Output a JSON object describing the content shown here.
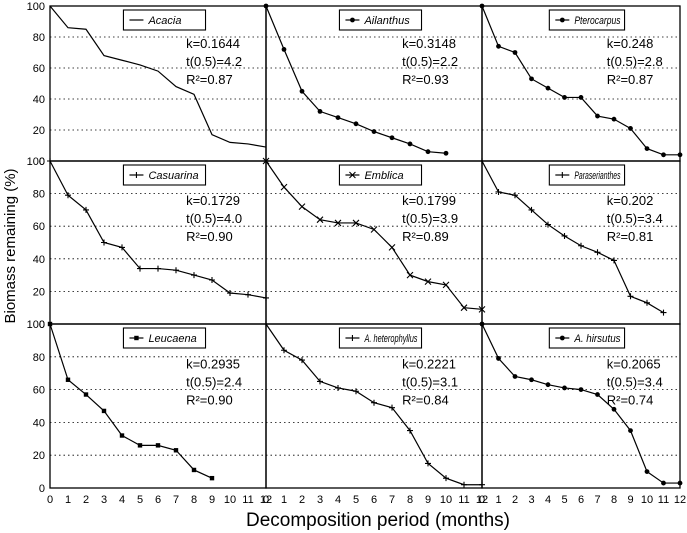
{
  "figure": {
    "xlabel": "Decomposition period (months)",
    "ylabel": "Biomass remaining (%)",
    "x_ticks": [
      0,
      1,
      2,
      3,
      4,
      5,
      6,
      7,
      8,
      9,
      10,
      11,
      12
    ],
    "y_ticks": [
      0,
      20,
      40,
      60,
      80,
      100
    ],
    "stat_labels": {
      "k": "k=",
      "t": "t(0.5)=",
      "r": "R²="
    }
  },
  "chart_data": [
    {
      "type": "line",
      "xlim": [
        0,
        12
      ],
      "ylim": [
        0,
        100
      ],
      "grid": "horizontal-dotted",
      "legend": "top-right",
      "series": [
        {
          "name": "Acacia",
          "marker": "none",
          "x": [
            0,
            1,
            2,
            3,
            4,
            5,
            6,
            7,
            8,
            9,
            10,
            11,
            12
          ],
          "y": [
            100,
            86,
            85,
            68,
            65,
            62,
            58,
            48,
            43,
            17,
            12,
            11,
            9
          ]
        }
      ],
      "k": "0.1644",
      "t_half": "4.2",
      "r2": "0.87"
    },
    {
      "type": "line",
      "xlim": [
        0,
        12
      ],
      "ylim": [
        0,
        100
      ],
      "grid": "horizontal-dotted",
      "legend": "top-right",
      "series": [
        {
          "name": "Ailanthus",
          "marker": "dot",
          "x": [
            0,
            1,
            2,
            3,
            4,
            5,
            6,
            7,
            8,
            9,
            10
          ],
          "y": [
            100,
            72,
            45,
            32,
            28,
            24,
            19,
            15,
            11,
            6,
            5
          ]
        }
      ],
      "k": "0.3148",
      "t_half": "2.2",
      "r2": "0.93"
    },
    {
      "type": "line",
      "xlim": [
        0,
        12
      ],
      "ylim": [
        0,
        100
      ],
      "grid": "horizontal-dotted",
      "legend": "top-right",
      "series": [
        {
          "name": "Pterocarpus",
          "marker": "dot",
          "x": [
            0,
            1,
            2,
            3,
            4,
            5,
            6,
            7,
            8,
            9,
            10,
            11,
            12
          ],
          "y": [
            100,
            74,
            70,
            53,
            47,
            41,
            41,
            29,
            27,
            21,
            8,
            4,
            4
          ]
        }
      ],
      "k": "0.248",
      "t_half": "2.8",
      "r2": "0.87"
    },
    {
      "type": "line",
      "xlim": [
        0,
        12
      ],
      "ylim": [
        0,
        100
      ],
      "grid": "horizontal-dotted",
      "legend": "top-right",
      "series": [
        {
          "name": "Casuarina",
          "marker": "plus",
          "x": [
            0,
            1,
            2,
            3,
            4,
            5,
            6,
            7,
            8,
            9,
            10,
            11,
            12
          ],
          "y": [
            100,
            79,
            70,
            50,
            47,
            34,
            34,
            33,
            30,
            27,
            19,
            18,
            16
          ]
        }
      ],
      "k": "0.1729",
      "t_half": "4.0",
      "r2": "0.90"
    },
    {
      "type": "line",
      "xlim": [
        0,
        12
      ],
      "ylim": [
        0,
        100
      ],
      "grid": "horizontal-dotted",
      "legend": "top-right",
      "series": [
        {
          "name": "Emblica",
          "marker": "cross",
          "x": [
            0,
            1,
            2,
            3,
            4,
            5,
            6,
            7,
            8,
            9,
            10,
            11,
            12
          ],
          "y": [
            100,
            84,
            72,
            64,
            62,
            62,
            58,
            47,
            30,
            26,
            24,
            10,
            9
          ]
        }
      ],
      "k": "0.1799",
      "t_half": "3.9",
      "r2": "0.89"
    },
    {
      "type": "line",
      "xlim": [
        0,
        12
      ],
      "ylim": [
        0,
        100
      ],
      "grid": "horizontal-dotted",
      "legend": "top-right",
      "series": [
        {
          "name": "Paraserianthes",
          "marker": "plus",
          "x": [
            0,
            1,
            2,
            3,
            4,
            5,
            6,
            7,
            8,
            9,
            10,
            11
          ],
          "y": [
            100,
            81,
            79,
            70,
            61,
            54,
            48,
            44,
            39,
            17,
            13,
            7
          ]
        }
      ],
      "k": "0.202",
      "t_half": "3.4",
      "r2": "0.81"
    },
    {
      "type": "line",
      "xlim": [
        0,
        12
      ],
      "ylim": [
        0,
        100
      ],
      "grid": "horizontal-dotted",
      "legend": "top-right",
      "series": [
        {
          "name": "Leucaena",
          "marker": "square",
          "x": [
            0,
            1,
            2,
            3,
            4,
            5,
            6,
            7,
            8,
            9
          ],
          "y": [
            100,
            66,
            57,
            47,
            32,
            26,
            26,
            23,
            11,
            6
          ]
        }
      ],
      "k": "0.2935",
      "t_half": "2.4",
      "r2": "0.90"
    },
    {
      "type": "line",
      "xlim": [
        0,
        12
      ],
      "ylim": [
        0,
        100
      ],
      "grid": "horizontal-dotted",
      "legend": "top-right",
      "series": [
        {
          "name": "A. heterophyllus",
          "marker": "plus",
          "x": [
            0,
            1,
            2,
            3,
            4,
            5,
            6,
            7,
            8,
            9,
            10,
            11,
            12
          ],
          "y": [
            100,
            84,
            78,
            65,
            61,
            59,
            52,
            49,
            35,
            15,
            6,
            2,
            2
          ]
        }
      ],
      "k": "0.2221",
      "t_half": "3.1",
      "r2": "0.84"
    },
    {
      "type": "line",
      "xlim": [
        0,
        12
      ],
      "ylim": [
        0,
        100
      ],
      "grid": "horizontal-dotted",
      "legend": "top-right",
      "series": [
        {
          "name": "A. hirsutus",
          "marker": "dot",
          "x": [
            0,
            1,
            2,
            3,
            4,
            5,
            6,
            7,
            8,
            9,
            10,
            11,
            12
          ],
          "y": [
            100,
            79,
            68,
            66,
            63,
            61,
            60,
            57,
            48,
            35,
            10,
            3,
            3
          ]
        }
      ],
      "k": "0.2065",
      "t_half": "3.4",
      "r2": "0.74"
    }
  ]
}
